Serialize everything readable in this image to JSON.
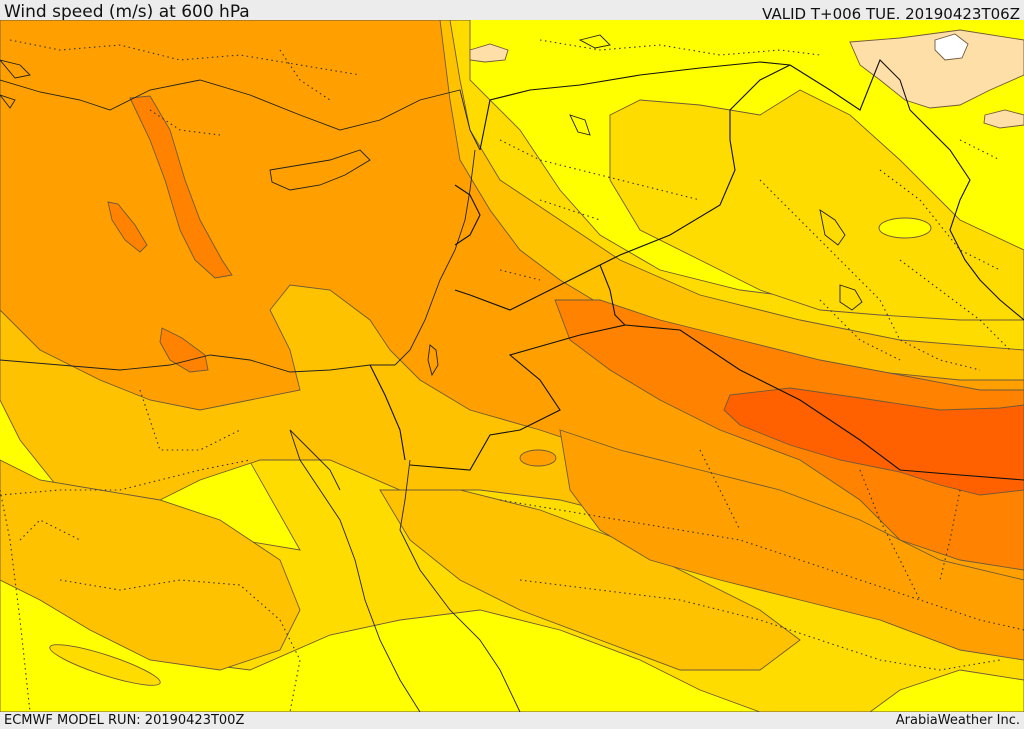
{
  "header": {
    "title": "Wind speed (m/s) at 600 hPa",
    "valid": "VALID T+006 TUE. 20190423T06Z"
  },
  "footer": {
    "model_run": "ECMWF MODEL RUN: 20190423T00Z",
    "credit": "ArabiaWeather Inc."
  },
  "palette": {
    "calm": "#ffffff",
    "light": "#ffdfa8",
    "yellow": "#ffff00",
    "gold": "#ffdc00",
    "amber": "#ffc200",
    "orange": "#ffa000",
    "dark_orange": "#ff8200",
    "red_orange": "#ff6000"
  }
}
